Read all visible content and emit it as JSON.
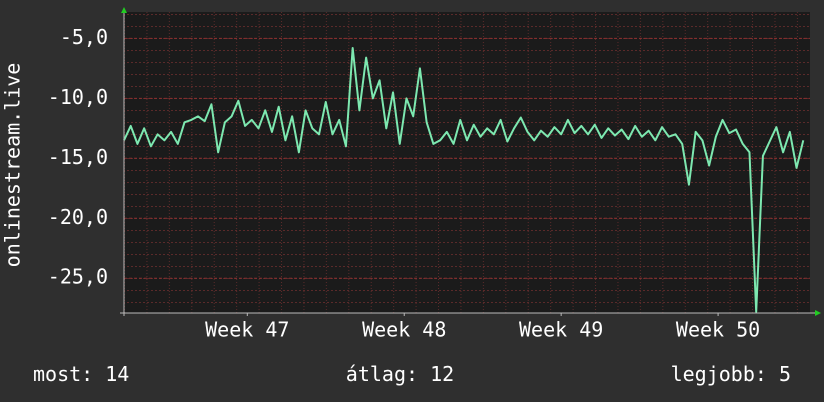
{
  "chart_data": {
    "type": "line",
    "ylabel": "onlinestream.live",
    "x": [
      0,
      0.3,
      0.6,
      0.9,
      1.2,
      1.5,
      1.8,
      2.1,
      2.4,
      2.7,
      3.0,
      3.3,
      3.6,
      3.9,
      4.2,
      4.5,
      4.8,
      5.1,
      5.4,
      5.7,
      6.0,
      6.3,
      6.6,
      6.9,
      7.2,
      7.5,
      7.8,
      8.1,
      8.4,
      8.7,
      9.0,
      9.3,
      9.6,
      9.9,
      10.2,
      10.5,
      10.8,
      11.1,
      11.4,
      11.7,
      12.0,
      12.3,
      12.6,
      12.9,
      13.2,
      13.5,
      13.8,
      14.1,
      14.4,
      14.7,
      15.0,
      15.3,
      15.6,
      15.9,
      16.2,
      16.5,
      16.8,
      17.1,
      17.4,
      17.7,
      18.0,
      18.3,
      18.6,
      18.9,
      19.2,
      19.5,
      19.8,
      20.1,
      20.4,
      20.7,
      21.0,
      21.3,
      21.6,
      21.9,
      22.2,
      22.5,
      22.8,
      23.1,
      23.4,
      23.7,
      24.0,
      24.3,
      24.6,
      24.9,
      25.2,
      25.5,
      25.8,
      26.1,
      26.4,
      26.7,
      27.0,
      27.3,
      27.6,
      27.9,
      28.2,
      28.5,
      28.8,
      29.1,
      29.4,
      29.7,
      30.0,
      30.3
    ],
    "series": [
      {
        "color": "#7de8b0",
        "values": [
          -13.5,
          -12.3,
          -13.8,
          -12.5,
          -14,
          -13,
          -13.5,
          -12.8,
          -13.8,
          -12,
          -11.8,
          -11.5,
          -11.9,
          -10.5,
          -14.5,
          -12,
          -11.5,
          -10.2,
          -12.3,
          -11.8,
          -12.5,
          -11,
          -12.8,
          -10.7,
          -13.5,
          -11.5,
          -14.5,
          -11,
          -12.5,
          -13,
          -10.3,
          -13,
          -11.8,
          -14,
          -5.8,
          -11,
          -6.6,
          -10,
          -8.5,
          -12.5,
          -9.5,
          -13.8,
          -10,
          -11.5,
          -7.5,
          -12,
          -13.8,
          -13.5,
          -12.8,
          -13.8,
          -11.8,
          -13.5,
          -12.2,
          -13.2,
          -12.5,
          -13,
          -11.8,
          -13.6,
          -12.5,
          -11.6,
          -12.8,
          -13.5,
          -12.7,
          -13.2,
          -12.4,
          -13,
          -11.8,
          -12.9,
          -12.3,
          -13,
          -12.2,
          -13.3,
          -12.5,
          -13.1,
          -12.6,
          -13.4,
          -12.3,
          -13.2,
          -12.7,
          -13.5,
          -12.4,
          -13.2,
          -13,
          -13.8,
          -17.2,
          -12.8,
          -13.5,
          -15.6,
          -13.2,
          -11.8,
          -12.9,
          -12.6,
          -13.8,
          -14.5,
          -27.8,
          -14.8,
          -13.6,
          -12.4,
          -14.5,
          -12.8,
          -15.8,
          -13.5
        ]
      }
    ],
    "xlim": [
      0,
      30.6
    ],
    "xticks": [
      {
        "value": 5.5,
        "label": "Week 47"
      },
      {
        "value": 12.5,
        "label": "Week 48"
      },
      {
        "value": 19.5,
        "label": "Week 49"
      },
      {
        "value": 26.5,
        "label": "Week 50"
      }
    ],
    "ylim": [
      -27.9,
      -2.8
    ],
    "yticks": [
      {
        "value": -25,
        "label": "-25,0"
      },
      {
        "value": -20,
        "label": "-20,0"
      },
      {
        "value": -15,
        "label": "-15,0"
      },
      {
        "value": -10,
        "label": "-10,0"
      },
      {
        "value": -5,
        "label": "-5,0"
      }
    ],
    "grid": true,
    "footer": [
      {
        "label": "most:",
        "value": 14
      },
      {
        "label": "átlag:",
        "value": 12
      },
      {
        "label": "legjobb:",
        "value": 5
      }
    ]
  }
}
